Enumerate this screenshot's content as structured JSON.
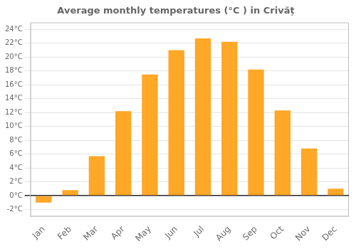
{
  "chart_data": {
    "type": "bar",
    "title": "Average monthly temperatures (°C ) in Crivăț",
    "categories": [
      "Jan",
      "Feb",
      "Mar",
      "Apr",
      "May",
      "Jun",
      "Jul",
      "Aug",
      "Sep",
      "Oct",
      "Nov",
      "Dec"
    ],
    "values": [
      -1.0,
      0.8,
      5.7,
      12.2,
      17.5,
      21.0,
      22.7,
      22.2,
      18.2,
      12.3,
      6.8,
      1.0
    ],
    "color": "#FFA726",
    "ylim": [
      -3,
      25
    ],
    "yticks": [
      {
        "value": -2,
        "label": "-2°C"
      },
      {
        "value": 0,
        "label": "0°C"
      },
      {
        "value": 2,
        "label": "2°C"
      },
      {
        "value": 4,
        "label": "4°C"
      },
      {
        "value": 6,
        "label": "6°C"
      },
      {
        "value": 8,
        "label": "8°C"
      },
      {
        "value": 10,
        "label": "10°C"
      },
      {
        "value": 12,
        "label": "12°C"
      },
      {
        "value": 14,
        "label": "14°C"
      },
      {
        "value": 16,
        "label": "16°C"
      },
      {
        "value": 18,
        "label": "18°C"
      },
      {
        "value": 20,
        "label": "20°C"
      },
      {
        "value": 22,
        "label": "22°C"
      },
      {
        "value": 24,
        "label": "24°C"
      }
    ],
    "grid": true
  }
}
